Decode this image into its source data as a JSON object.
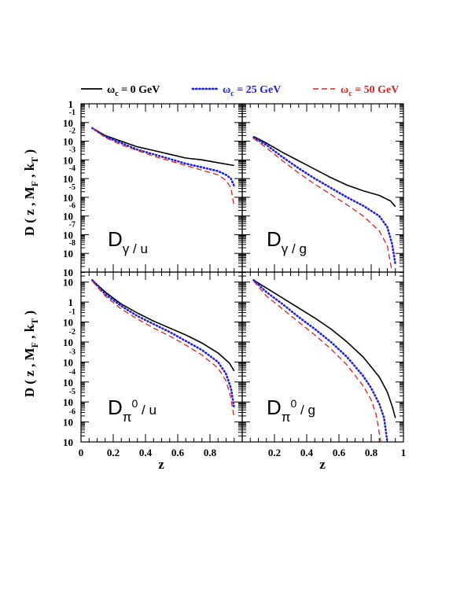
{
  "chart_data": {
    "type": "line",
    "ylabel": {
      "base": "D ( z , M",
      "sub1": "F",
      "mid": " , k",
      "sub2": "T",
      "end": " )"
    },
    "xlabel": "z",
    "legend": [
      {
        "label_main": "ω",
        "label_sub": "c",
        "label_rest": " = 0 GeV",
        "color": "#000000",
        "dash": "solid"
      },
      {
        "label_main": "ω",
        "label_sub": "c",
        "label_rest": " = 25 GeV",
        "color": "#1f1fe0",
        "dash": "dotted"
      },
      {
        "label_main": "ω",
        "label_sub": "c",
        "label_rest": " = 50 GeV",
        "color": "#e01f1f",
        "dash": "dashed"
      }
    ],
    "x_ticks": [
      "0",
      "0.2",
      "0.4",
      "0.6",
      "0.8",
      "1"
    ],
    "x_ticks_left": [
      "0",
      "0.2",
      "0.4",
      "0.6",
      "0.8"
    ],
    "xlim": [
      0,
      1
    ],
    "panels": [
      {
        "id": "gamma-u",
        "label_main": "D",
        "label_sub": "γ / u",
        "log_scale": true,
        "ylim_log10": [
          -9,
          0
        ],
        "y_ticks": [
          {
            "base": "1",
            "exp": ""
          },
          {
            "base": "10",
            "exp": "-1"
          },
          {
            "base": "10",
            "exp": "-2"
          },
          {
            "base": "10",
            "exp": "-3"
          },
          {
            "base": "10",
            "exp": "-4"
          },
          {
            "base": "10",
            "exp": "-5"
          },
          {
            "base": "10",
            "exp": "-6"
          },
          {
            "base": "10",
            "exp": "-7"
          },
          {
            "base": "10",
            "exp": "-8"
          }
        ],
        "series": [
          {
            "x": [
              0.07,
              0.15,
              0.25,
              0.35,
              0.45,
              0.55,
              0.65,
              0.75,
              0.85,
              0.95
            ],
            "log10_y": [
              -1.3,
              -1.7,
              -2.0,
              -2.3,
              -2.5,
              -2.7,
              -2.9,
              -3.0,
              -3.15,
              -3.3
            ]
          },
          {
            "x": [
              0.07,
              0.15,
              0.25,
              0.35,
              0.45,
              0.55,
              0.65,
              0.75,
              0.85,
              0.9,
              0.93,
              0.95
            ],
            "log10_y": [
              -1.3,
              -1.75,
              -2.1,
              -2.45,
              -2.7,
              -2.95,
              -3.2,
              -3.4,
              -3.6,
              -3.8,
              -4.0,
              -4.4
            ]
          },
          {
            "x": [
              0.07,
              0.15,
              0.25,
              0.35,
              0.45,
              0.55,
              0.65,
              0.75,
              0.85,
              0.9,
              0.93,
              0.95
            ],
            "log10_y": [
              -1.3,
              -1.8,
              -2.2,
              -2.5,
              -2.8,
              -3.05,
              -3.3,
              -3.55,
              -3.8,
              -4.1,
              -4.5,
              -5.5
            ]
          }
        ]
      },
      {
        "id": "gamma-g",
        "label_main": "D",
        "label_sub": "γ / g",
        "log_scale": true,
        "ylim_log10": [
          -9,
          0
        ],
        "series": [
          {
            "x": [
              0.07,
              0.15,
              0.25,
              0.35,
              0.45,
              0.55,
              0.65,
              0.75,
              0.85,
              0.92,
              0.95
            ],
            "log10_y": [
              -1.75,
              -2.1,
              -2.6,
              -3.05,
              -3.5,
              -3.95,
              -4.35,
              -4.65,
              -4.9,
              -5.2,
              -5.5
            ]
          },
          {
            "x": [
              0.07,
              0.15,
              0.25,
              0.35,
              0.45,
              0.55,
              0.65,
              0.75,
              0.85,
              0.9,
              0.93,
              0.95
            ],
            "log10_y": [
              -1.8,
              -2.2,
              -2.85,
              -3.45,
              -4.0,
              -4.5,
              -5.0,
              -5.45,
              -6.0,
              -6.6,
              -7.5,
              -8.6
            ]
          },
          {
            "x": [
              0.07,
              0.15,
              0.25,
              0.35,
              0.45,
              0.55,
              0.65,
              0.75,
              0.85,
              0.9,
              0.93
            ],
            "log10_y": [
              -1.85,
              -2.35,
              -3.05,
              -3.7,
              -4.3,
              -4.85,
              -5.4,
              -6.0,
              -6.8,
              -7.6,
              -9.0
            ]
          }
        ]
      },
      {
        "id": "pi0-u",
        "label_main": "D",
        "label_sub": "π",
        "label_sup": "0",
        "label_tail": " / u",
        "log_scale": true,
        "ylim_log10": [
          -7,
          1.5
        ],
        "y_ticks": [
          {
            "base": "10",
            "exp": ""
          },
          {
            "base": "1",
            "exp": ""
          },
          {
            "base": "10",
            "exp": "-1"
          },
          {
            "base": "10",
            "exp": "-2"
          },
          {
            "base": "10",
            "exp": "-3"
          },
          {
            "base": "10",
            "exp": "-4"
          },
          {
            "base": "10",
            "exp": "-5"
          },
          {
            "base": "10",
            "exp": "-6"
          }
        ],
        "series": [
          {
            "x": [
              0.07,
              0.15,
              0.25,
              0.35,
              0.45,
              0.55,
              0.65,
              0.75,
              0.85,
              0.92,
              0.95
            ],
            "log10_y": [
              1.1,
              0.5,
              -0.1,
              -0.55,
              -0.95,
              -1.3,
              -1.65,
              -2.05,
              -2.55,
              -3.05,
              -3.45
            ]
          },
          {
            "x": [
              0.07,
              0.15,
              0.25,
              0.35,
              0.45,
              0.55,
              0.65,
              0.75,
              0.85,
              0.9,
              0.93,
              0.95
            ],
            "log10_y": [
              1.1,
              0.4,
              -0.2,
              -0.7,
              -1.1,
              -1.5,
              -1.95,
              -2.4,
              -3.0,
              -3.6,
              -4.3,
              -5.3
            ]
          },
          {
            "x": [
              0.07,
              0.15,
              0.25,
              0.35,
              0.45,
              0.55,
              0.65,
              0.75,
              0.85,
              0.9,
              0.93,
              0.95
            ],
            "log10_y": [
              1.05,
              0.3,
              -0.35,
              -0.85,
              -1.3,
              -1.7,
              -2.15,
              -2.65,
              -3.3,
              -3.95,
              -4.8,
              -5.8
            ]
          }
        ]
      },
      {
        "id": "pi0-g",
        "label_main": "D",
        "label_sub": "π",
        "label_sup": "0",
        "label_tail": " / g",
        "log_scale": true,
        "ylim_log10": [
          -7,
          1.5
        ],
        "series": [
          {
            "x": [
              0.07,
              0.15,
              0.25,
              0.35,
              0.45,
              0.55,
              0.65,
              0.75,
              0.85,
              0.9,
              0.93,
              0.95
            ],
            "log10_y": [
              1.1,
              0.7,
              0.2,
              -0.3,
              -0.8,
              -1.35,
              -2.0,
              -2.75,
              -3.75,
              -4.5,
              -5.2,
              -5.8
            ]
          },
          {
            "x": [
              0.07,
              0.15,
              0.25,
              0.35,
              0.45,
              0.55,
              0.65,
              0.75,
              0.8,
              0.85,
              0.88,
              0.9
            ],
            "log10_y": [
              1.1,
              0.5,
              -0.1,
              -0.75,
              -1.35,
              -2.0,
              -2.75,
              -3.7,
              -4.3,
              -5.1,
              -5.8,
              -7.0
            ]
          },
          {
            "x": [
              0.07,
              0.15,
              0.25,
              0.35,
              0.45,
              0.55,
              0.65,
              0.75,
              0.8,
              0.83,
              0.86
            ],
            "log10_y": [
              1.05,
              0.3,
              -0.35,
              -1.0,
              -1.65,
              -2.35,
              -3.15,
              -4.2,
              -4.9,
              -5.6,
              -7.0
            ]
          }
        ]
      }
    ]
  }
}
